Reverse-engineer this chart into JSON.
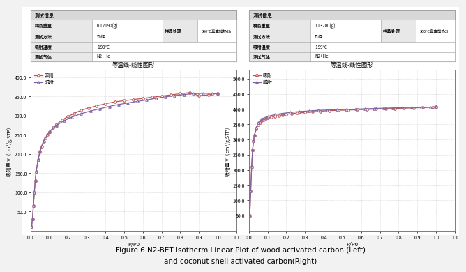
{
  "title_caption1": "Figure 6 N2-BET Isotherm Linear Plot of wood activated carbon (Left)",
  "title_caption2": "and coconut shell activated carbon(Right)",
  "chart_title": "等温线-线性图形",
  "xlabel": "P/P0",
  "ylabel": "吸附量 V（cm³/g,STP）",
  "legend_ads": "吸附",
  "legend_des": "脱附",
  "info_header": "测试信息",
  "label_weight": "样品重量",
  "label_method": "测试方法",
  "label_temp": "吸附温度",
  "label_gas": "测试气体",
  "label_treatment": "样品处理",
  "left_weight": "0.12190(g)",
  "left_method": "孔径",
  "left_temp": "-199°C",
  "left_gas": "N2+He",
  "left_treatment": "300°C真空加热2h",
  "right_weight": "0.13200(g)",
  "right_method": "孔径",
  "right_temp": "-199°C",
  "right_gas": "N2+He",
  "right_treatment": "300°C真空加热2h",
  "left_ylim": [
    0,
    420
  ],
  "left_yticks": [
    50.0,
    100.0,
    150.0,
    200.0,
    250.0,
    300.0,
    350.0,
    400.0
  ],
  "right_ylim": [
    0,
    530
  ],
  "right_yticks": [
    50.0,
    100.0,
    150.0,
    200.0,
    250.0,
    300.0,
    350.0,
    400.0,
    450.0,
    500.0
  ],
  "xlim": [
    0.0,
    1.1
  ],
  "xticks": [
    0.0,
    0.1,
    0.2,
    0.3,
    0.4,
    0.5,
    0.6,
    0.7,
    0.8,
    0.9,
    1.0,
    1.1
  ],
  "ads_color": "#c0504d",
  "des_color": "#8064a2",
  "grid_color": "#bbbbbb",
  "left_ads_x": [
    0.005,
    0.01,
    0.015,
    0.02,
    0.025,
    0.03,
    0.04,
    0.05,
    0.06,
    0.07,
    0.08,
    0.09,
    0.1,
    0.12,
    0.14,
    0.17,
    0.2,
    0.23,
    0.27,
    0.31,
    0.35,
    0.4,
    0.45,
    0.5,
    0.55,
    0.6,
    0.65,
    0.7,
    0.75,
    0.8,
    0.85,
    0.9,
    0.95,
    1.0
  ],
  "left_ads_y": [
    10,
    30,
    65,
    100,
    130,
    155,
    185,
    205,
    220,
    232,
    242,
    250,
    257,
    268,
    278,
    289,
    298,
    305,
    314,
    320,
    325,
    331,
    336,
    339,
    342,
    345,
    348,
    351,
    354,
    357,
    360,
    352,
    354,
    358
  ],
  "left_des_x": [
    0.005,
    0.01,
    0.015,
    0.02,
    0.025,
    0.03,
    0.04,
    0.05,
    0.07,
    0.1,
    0.14,
    0.18,
    0.22,
    0.27,
    0.32,
    0.37,
    0.42,
    0.47,
    0.52,
    0.57,
    0.62,
    0.67,
    0.72,
    0.77,
    0.82,
    0.87,
    0.92,
    0.97,
    1.0
  ],
  "left_des_y": [
    10,
    30,
    65,
    100,
    130,
    155,
    185,
    208,
    235,
    258,
    275,
    287,
    296,
    305,
    312,
    318,
    324,
    329,
    333,
    337,
    341,
    345,
    349,
    352,
    355,
    357,
    358,
    358,
    358
  ],
  "right_ads_x": [
    0.005,
    0.01,
    0.015,
    0.02,
    0.025,
    0.03,
    0.04,
    0.05,
    0.06,
    0.07,
    0.08,
    0.09,
    0.1,
    0.12,
    0.14,
    0.16,
    0.18,
    0.2,
    0.23,
    0.26,
    0.3,
    0.34,
    0.38,
    0.43,
    0.48,
    0.53,
    0.58,
    0.63,
    0.68,
    0.73,
    0.78,
    0.83,
    0.88,
    0.93,
    0.98,
    1.0
  ],
  "right_ads_y": [
    50,
    130,
    210,
    265,
    295,
    315,
    335,
    348,
    356,
    361,
    365,
    368,
    371,
    374,
    377,
    379,
    381,
    383,
    385,
    387,
    389,
    391,
    393,
    395,
    396,
    397,
    398,
    399,
    400,
    401,
    402,
    403,
    404,
    405,
    406,
    408
  ],
  "right_des_x": [
    0.005,
    0.01,
    0.015,
    0.02,
    0.025,
    0.03,
    0.04,
    0.05,
    0.07,
    0.1,
    0.14,
    0.18,
    0.22,
    0.27,
    0.32,
    0.37,
    0.42,
    0.47,
    0.52,
    0.57,
    0.62,
    0.67,
    0.72,
    0.77,
    0.82,
    0.87,
    0.92,
    0.97,
    1.0
  ],
  "right_des_y": [
    50,
    130,
    210,
    265,
    295,
    315,
    340,
    355,
    368,
    376,
    382,
    386,
    389,
    392,
    394,
    396,
    397,
    398,
    399,
    400,
    401,
    402,
    403,
    404,
    405,
    406,
    406,
    406,
    408
  ]
}
